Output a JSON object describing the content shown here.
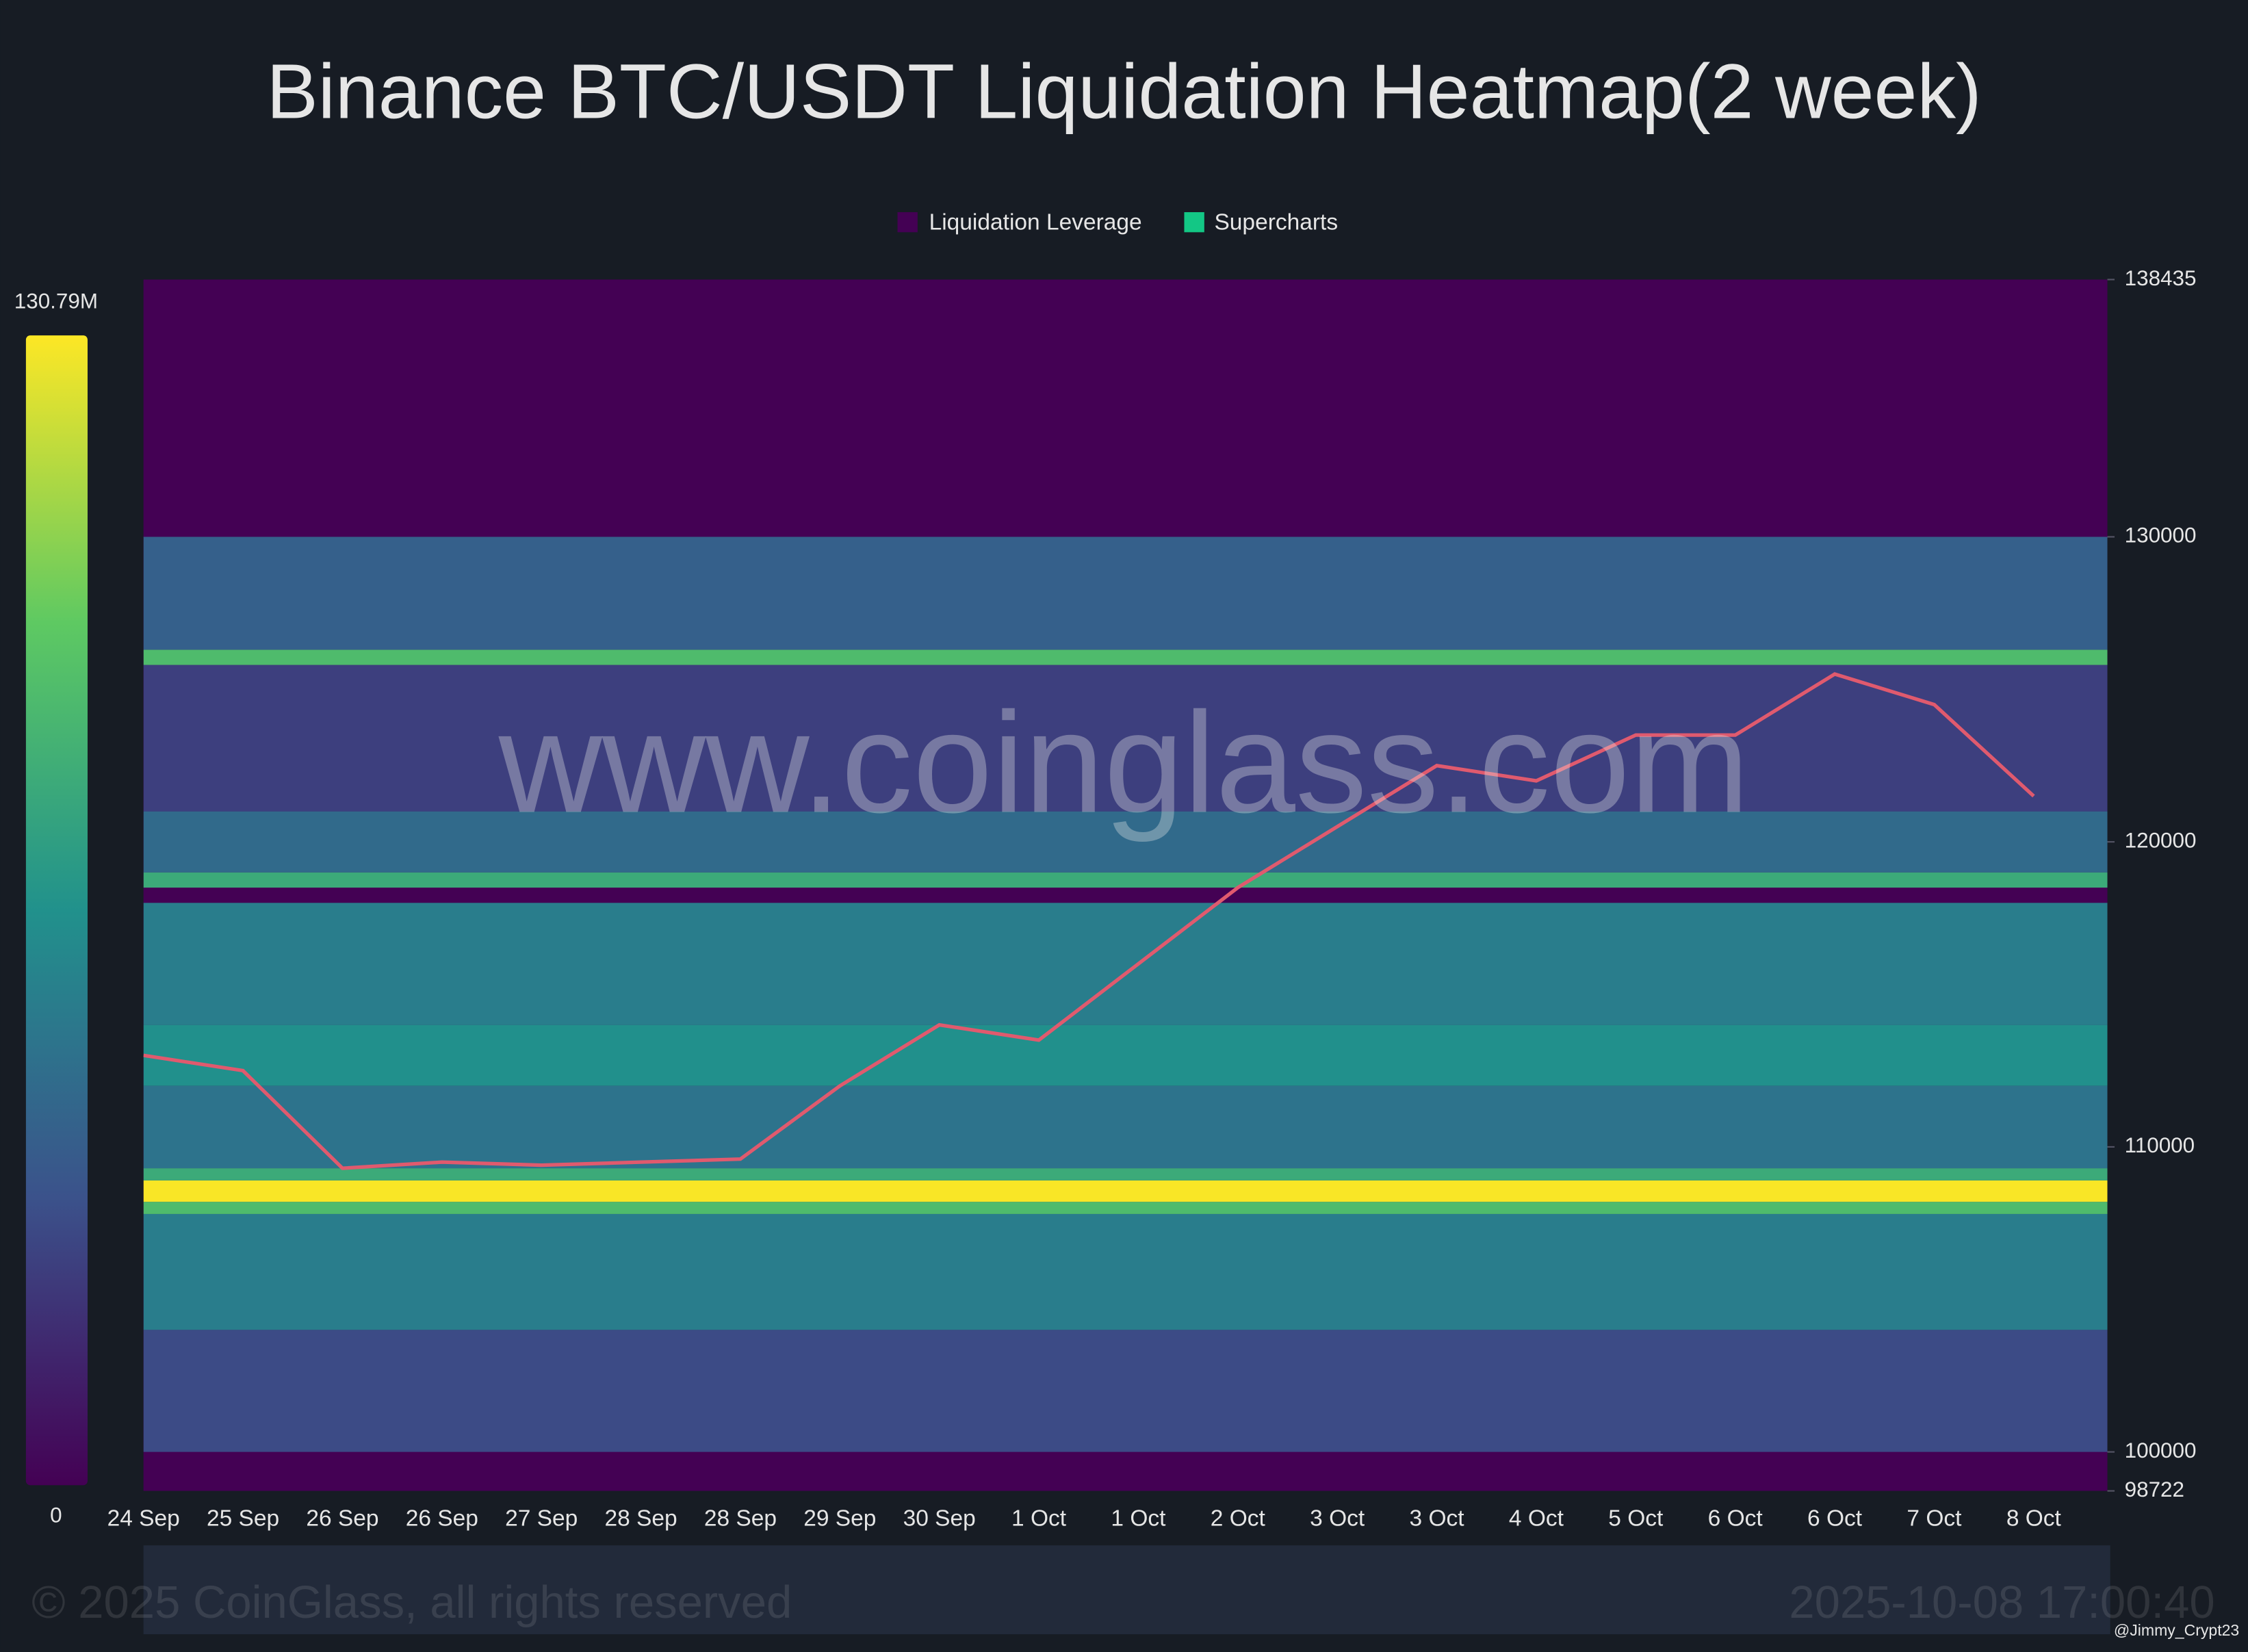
{
  "chart_data": {
    "type": "heatmap",
    "title": "Binance BTC/USDT Liquidation Heatmap(2 week)",
    "series": [
      {
        "name": "Liquidation Leverage",
        "color": "#440154"
      },
      {
        "name": "Supercharts",
        "color": "#13c785",
        "values": [
          113000,
          112500,
          109300,
          109500,
          109400,
          109500,
          109600,
          112000,
          114000,
          113500,
          116000,
          118500,
          120500,
          122500,
          122000,
          123500,
          123500,
          125500,
          124500,
          121500
        ]
      }
    ],
    "categories": [
      "24 Sep",
      "25 Sep",
      "26 Sep",
      "26 Sep",
      "27 Sep",
      "28 Sep",
      "28 Sep",
      "29 Sep",
      "30 Sep",
      "1 Oct",
      "1 Oct",
      "2 Oct",
      "3 Oct",
      "3 Oct",
      "4 Oct",
      "5 Oct",
      "6 Oct",
      "6 Oct",
      "7 Oct",
      "8 Oct"
    ],
    "ylim": [
      98722,
      138435
    ],
    "yticks": [
      98722,
      100000,
      110000,
      120000,
      130000,
      138435
    ],
    "clim": [
      {
        "value": 0,
        "label": "0"
      },
      {
        "value": 130790000,
        "label": "130.79M"
      }
    ],
    "bands": [
      {
        "low": 100000,
        "high": 104000,
        "value": 30000000
      },
      {
        "low": 104000,
        "high": 107800,
        "value": 55000000
      },
      {
        "low": 107800,
        "high": 108200,
        "value": 90000000
      },
      {
        "low": 108200,
        "high": 108900,
        "value": 130000000
      },
      {
        "low": 108900,
        "high": 109300,
        "value": 80000000
      },
      {
        "low": 109300,
        "high": 112000,
        "value": 50000000
      },
      {
        "low": 112000,
        "high": 114000,
        "value": 65000000
      },
      {
        "low": 114000,
        "high": 118000,
        "value": 55000000
      },
      {
        "low": 118500,
        "high": 119000,
        "value": 80000000
      },
      {
        "low": 119000,
        "high": 121000,
        "value": 45000000
      },
      {
        "low": 121000,
        "high": 125800,
        "value": 25000000
      },
      {
        "low": 125800,
        "high": 126300,
        "value": 90000000
      },
      {
        "low": 126300,
        "high": 130000,
        "value": 40000000
      }
    ],
    "watermark": "www.coinglass.com",
    "copyright": "© 2025 CoinGlass, all rights reserved",
    "timestamp": "2025-10-08 17:00:40",
    "credit": "@Jimmy_Crypt23"
  }
}
